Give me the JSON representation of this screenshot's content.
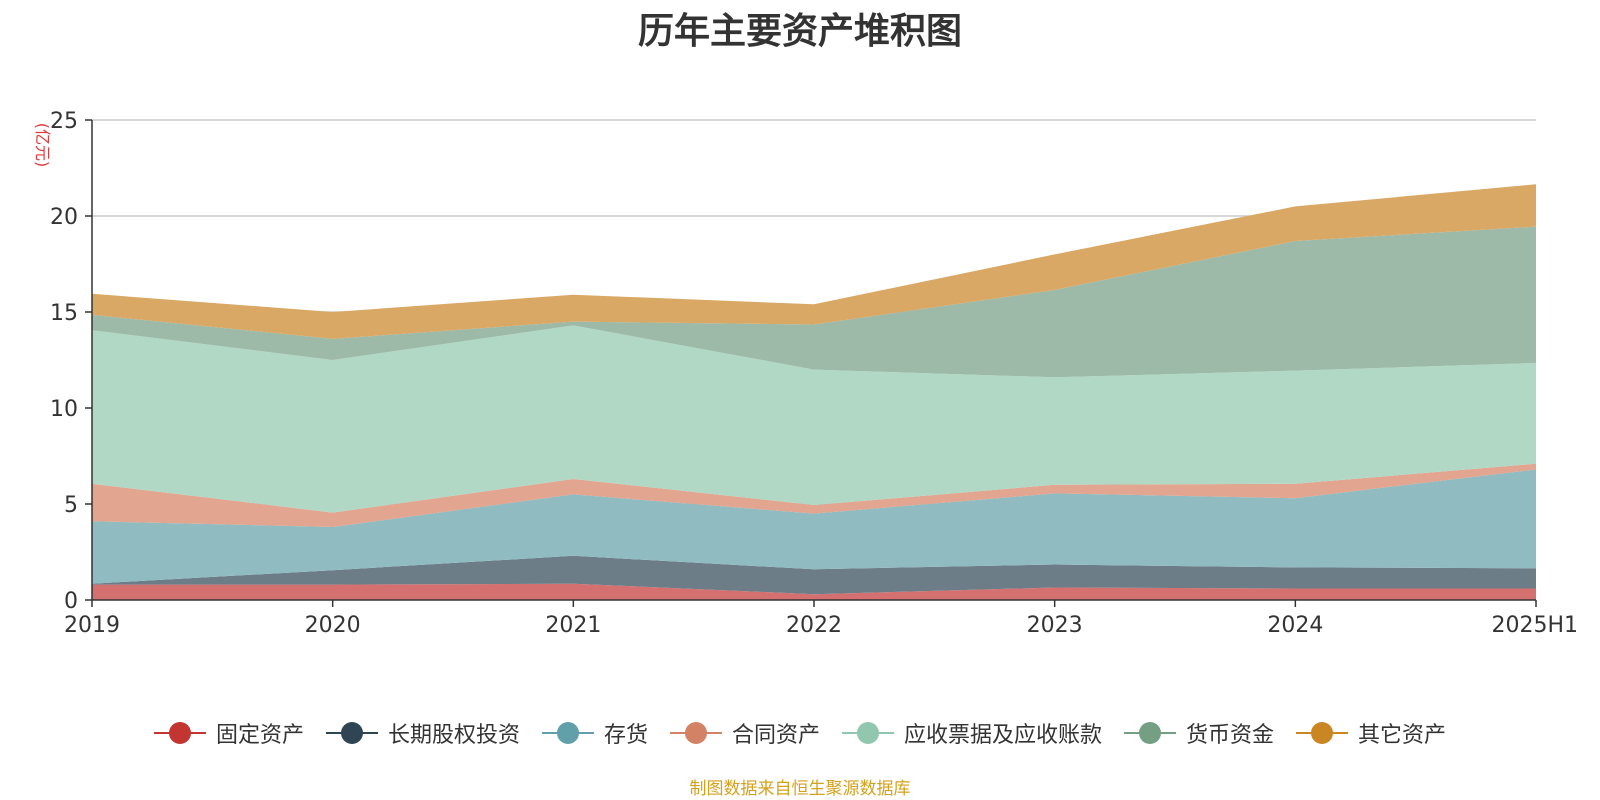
{
  "chart_data": {
    "type": "area",
    "stacked": true,
    "title": "历年主要资产堆积图",
    "unit": "(亿元)",
    "categories": [
      "2019",
      "2020",
      "2021",
      "2022",
      "2023",
      "2024",
      "2025H1"
    ],
    "ylim": [
      0,
      25
    ],
    "yticks": [
      "0",
      "5",
      "10",
      "15",
      "20",
      "25"
    ],
    "grid": true,
    "legend_position": "bottom",
    "series": [
      {
        "name": "固定资产",
        "color": "#c23531",
        "fill": "#d47170",
        "values": [
          0.8,
          0.8,
          0.85,
          0.3,
          0.65,
          0.6,
          0.6
        ]
      },
      {
        "name": "长期股权投资",
        "color": "#2f4554",
        "fill": "#6d7d87",
        "values": [
          0.05,
          0.75,
          1.45,
          1.3,
          1.2,
          1.1,
          1.05
        ]
      },
      {
        "name": "存货",
        "color": "#61a0a8",
        "fill": "#90bbc1",
        "values": [
          3.25,
          2.25,
          3.2,
          2.9,
          3.7,
          3.6,
          5.15
        ]
      },
      {
        "name": "合同资产",
        "color": "#d48265",
        "fill": "#e1a590",
        "values": [
          1.95,
          0.75,
          0.8,
          0.45,
          0.45,
          0.75,
          0.3
        ]
      },
      {
        "name": "应收票据及应收账款",
        "color": "#91c7ae",
        "fill": "#b1d8c5",
        "values": [
          8.0,
          7.95,
          8.0,
          7.05,
          5.6,
          5.9,
          5.25
        ]
      },
      {
        "name": "货币资金",
        "color": "#749f83",
        "fill": "#9db9a7",
        "values": [
          0.8,
          1.1,
          0.2,
          2.35,
          4.55,
          6.75,
          7.1
        ]
      },
      {
        "name": "其它资产",
        "color": "#ca8622",
        "fill": "#d9a865",
        "values": [
          1.1,
          1.4,
          1.4,
          1.05,
          1.85,
          1.8,
          2.2
        ]
      }
    ]
  },
  "source_note": "制图数据来自恒生聚源数据库"
}
